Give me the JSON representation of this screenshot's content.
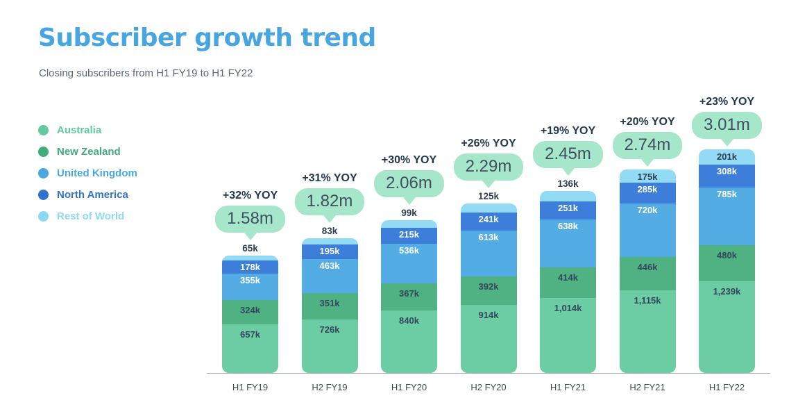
{
  "page": {
    "title": "Subscriber growth trend",
    "subtitle": "Closing subscribers from H1 FY19 to H1 FY22"
  },
  "colors": {
    "title_blue": "#47A6E1",
    "subtitle_gray": "#5A6772",
    "bubble_mint": "#A6E6CA",
    "bubble_text": "#3E4F5D",
    "yoy_text": "#22384F",
    "axis_line": "#A7AEB6",
    "tick_text": "#3C4A58"
  },
  "legend": {
    "items": [
      {
        "label": "Australia",
        "color": "#63C9A1"
      },
      {
        "label": "New Zealand",
        "color": "#40AC79"
      },
      {
        "label": "United Kingdom",
        "color": "#49A7E2"
      },
      {
        "label": "North America",
        "color": "#3173CB"
      },
      {
        "label": "Rest of World",
        "color": "#8FD8F3"
      }
    ]
  },
  "chart_data": {
    "type": "bar",
    "stacked": true,
    "title": "Subscriber growth trend",
    "subtitle": "Closing subscribers from H1 FY19 to H1 FY22",
    "unit": "thousands of subscribers",
    "categories": [
      "H1 FY19",
      "H2 FY19",
      "H1 FY20",
      "H2 FY20",
      "H1 FY21",
      "H2 FY21",
      "H1 FY22"
    ],
    "series": [
      {
        "name": "Australia",
        "color": "#6CCDA5",
        "label_color": "#33475C",
        "values_k": [
          657,
          726,
          840,
          914,
          1014,
          1115,
          1239
        ],
        "labels": [
          "657k",
          "726k",
          "840k",
          "914k",
          "1,014k",
          "1,115k",
          "1,239k"
        ]
      },
      {
        "name": "New Zealand",
        "color": "#50B282",
        "label_color": "#33475C",
        "values_k": [
          324,
          351,
          367,
          392,
          414,
          446,
          480
        ],
        "labels": [
          "324k",
          "351k",
          "367k",
          "392k",
          "414k",
          "446k",
          "480k"
        ]
      },
      {
        "name": "United Kingdom",
        "color": "#53ACE4",
        "label_color": "#FFFFFF",
        "values_k": [
          355,
          463,
          536,
          613,
          638,
          720,
          785
        ],
        "labels": [
          "355k",
          "463k",
          "536k",
          "613k",
          "638k",
          "720k",
          "785k"
        ]
      },
      {
        "name": "North America",
        "color": "#3C7ED9",
        "label_color": "#FFFFFF",
        "values_k": [
          178,
          195,
          215,
          241,
          251,
          285,
          308
        ],
        "labels": [
          "178k",
          "195k",
          "215k",
          "241k",
          "251k",
          "285k",
          "308k"
        ]
      },
      {
        "name": "Rest of World",
        "color": "#93DAF4",
        "label_color": "#2C3E50",
        "values_k": [
          65,
          83,
          99,
          125,
          136,
          175,
          201
        ],
        "labels": [
          "65k",
          "83k",
          "99k",
          "125k",
          "136k",
          "175k",
          "201k"
        ]
      }
    ],
    "totals": [
      "1.58m",
      "1.82m",
      "2.06m",
      "2.29m",
      "2.45m",
      "2.74m",
      "3.01m"
    ],
    "yoy_labels": [
      "+32% YOY",
      "+31% YOY",
      "+30% YOY",
      "+26% YOY",
      "+19% YOY",
      "+20% YOY",
      "+23% YOY"
    ],
    "rest_of_world_label_outside": [
      true,
      true,
      true,
      true,
      true,
      false,
      false
    ],
    "ylim_k": [
      0,
      3100
    ],
    "grid": false,
    "legend_position": "left"
  }
}
